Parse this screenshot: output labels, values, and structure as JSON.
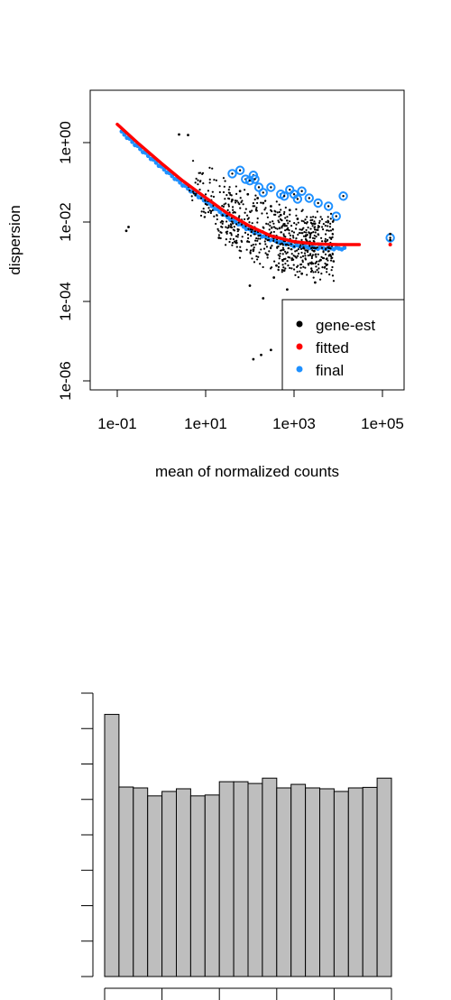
{
  "chart_data": [
    {
      "type": "scatter",
      "title": "",
      "xlabel": "mean of normalized counts",
      "ylabel": "dispersion",
      "x_scale": "log10",
      "y_scale": "log10",
      "xlim": [
        0.05,
        200000
      ],
      "ylim": [
        3.5e-07,
        6
      ],
      "x_ticks": [
        0.1,
        10,
        1000,
        100000
      ],
      "x_tick_labels": [
        "1e-01",
        "1e+01",
        "1e+03",
        "1e+05"
      ],
      "y_ticks": [
        1,
        0.01,
        0.0001,
        1e-06
      ],
      "y_tick_labels": [
        "1e+00",
        "1e-02",
        "1e-04",
        "1e-06"
      ],
      "grid": false,
      "legend": {
        "position": "bottom-right",
        "entries": [
          "gene-est",
          "fitted",
          "final"
        ]
      },
      "colors": {
        "gene-est": "#000000",
        "fitted": "#ff0000",
        "final": "#1e90ff"
      },
      "fitted_trend": {
        "x": [
          0.1,
          0.3,
          1,
          3,
          10,
          30,
          100,
          300,
          1000,
          3000,
          10000,
          30000
        ],
        "y": [
          2.9,
          0.95,
          0.3,
          0.11,
          0.041,
          0.017,
          0.0078,
          0.0045,
          0.0032,
          0.0028,
          0.0027,
          0.0027
        ]
      },
      "series": [
        {
          "name": "gene-est",
          "points": [
            [
              2.5,
              1.6
            ],
            [
              4,
              1.55
            ],
            [
              0.18,
              0.0075
            ],
            [
              0.16,
              0.006
            ],
            [
              40,
              0.036
            ],
            [
              60,
              0.06
            ],
            [
              90,
              0.05
            ],
            [
              150,
              0.04
            ],
            [
              200,
              0.03
            ],
            [
              300,
              0.025
            ],
            [
              500,
              0.015
            ],
            [
              800,
              0.02
            ],
            [
              1200,
              0.012
            ],
            [
              20,
              0.004
            ],
            [
              50,
              0.003
            ],
            [
              120,
              0.002
            ],
            [
              250,
              0.0015
            ],
            [
              400,
              0.0008
            ],
            [
              600,
              0.0006
            ],
            [
              900,
              0.0012
            ],
            [
              1500,
              0.0005
            ],
            [
              2500,
              0.0009
            ],
            [
              4000,
              0.0011
            ],
            [
              700,
              0.0002
            ],
            [
              200,
              0.00012
            ],
            [
              100,
              0.00025
            ],
            [
              3000,
              0.0003
            ],
            [
              350,
              0.0004
            ],
            [
              120,
              3.5e-06
            ],
            [
              180,
              4.5e-06
            ],
            [
              300,
              6e-06
            ],
            [
              150000,
              0.005
            ],
            [
              150000,
              0.0035
            ]
          ]
        },
        {
          "name": "final",
          "points": [
            [
              40,
              0.165
            ],
            [
              80,
              0.12
            ],
            [
              100,
              0.11
            ],
            [
              120,
              0.15
            ],
            [
              60,
              0.2
            ],
            [
              130,
              0.12
            ],
            [
              160,
              0.075
            ],
            [
              200,
              0.055
            ],
            [
              300,
              0.075
            ],
            [
              500,
              0.05
            ],
            [
              600,
              0.045
            ],
            [
              800,
              0.065
            ],
            [
              1000,
              0.05
            ],
            [
              1500,
              0.06
            ],
            [
              1200,
              0.038
            ],
            [
              2200,
              0.04
            ],
            [
              3500,
              0.03
            ],
            [
              6000,
              0.025
            ],
            [
              9000,
              0.014
            ],
            [
              13000,
              0.045
            ],
            [
              150000,
              0.004
            ]
          ]
        }
      ]
    },
    {
      "type": "bar",
      "title": "",
      "xlabel": "",
      "ylabel": "",
      "values": [
        1480,
        1070,
        1065,
        1020,
        1045,
        1060,
        1020,
        1025,
        1100,
        1100,
        1090,
        1120,
        1065,
        1085,
        1065,
        1060,
        1045,
        1065,
        1068,
        1120
      ],
      "bin_edges": [
        0.0,
        0.05,
        0.1,
        0.15,
        0.2,
        0.25,
        0.3,
        0.35,
        0.4,
        0.45,
        0.5,
        0.55,
        0.6,
        0.65,
        0.7,
        0.75,
        0.8,
        0.85,
        0.9,
        0.95,
        1.0
      ],
      "x_ticks": [
        0.0,
        0.2,
        0.4,
        0.6,
        0.8,
        1.0
      ],
      "x_tick_labels": [],
      "y_ticks": [
        0,
        200,
        400,
        600,
        800,
        1000,
        1200,
        1400,
        1600
      ],
      "y_tick_labels": [],
      "ylim": [
        0,
        1600
      ],
      "bar_color": "#bebebe",
      "edge_color": "#000000",
      "grid": false
    }
  ]
}
